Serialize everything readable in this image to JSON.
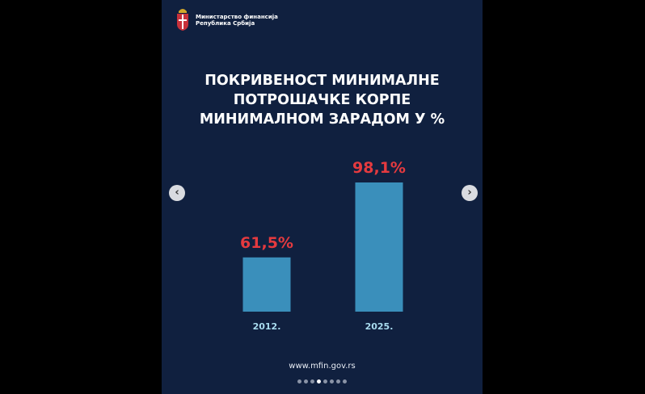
{
  "header": {
    "org_line1": "Министарство финансија",
    "org_line2": "Република Србија"
  },
  "chart_data": {
    "type": "bar",
    "title_lines": [
      "ПОКРИВЕНОСТ МИНИМАЛНЕ",
      "ПОТРОШАЧКЕ КОРПЕ",
      "МИНИМАЛНОМ ЗАРАДОМ У %"
    ],
    "categories": [
      "2012.",
      "2025."
    ],
    "values": [
      61.5,
      98.1
    ],
    "value_labels": [
      "61,5%",
      "98,1%"
    ],
    "xlabel": "",
    "ylabel": "",
    "ylim": [
      35,
      100
    ],
    "grid": false,
    "colors": {
      "bar": "#3a8fbb",
      "value_label": "#e53a3f",
      "category_label": "#a9dcef"
    }
  },
  "footer": {
    "url": "www.mfin.gov.rs"
  },
  "carousel": {
    "total": 8,
    "active_index": 3
  }
}
